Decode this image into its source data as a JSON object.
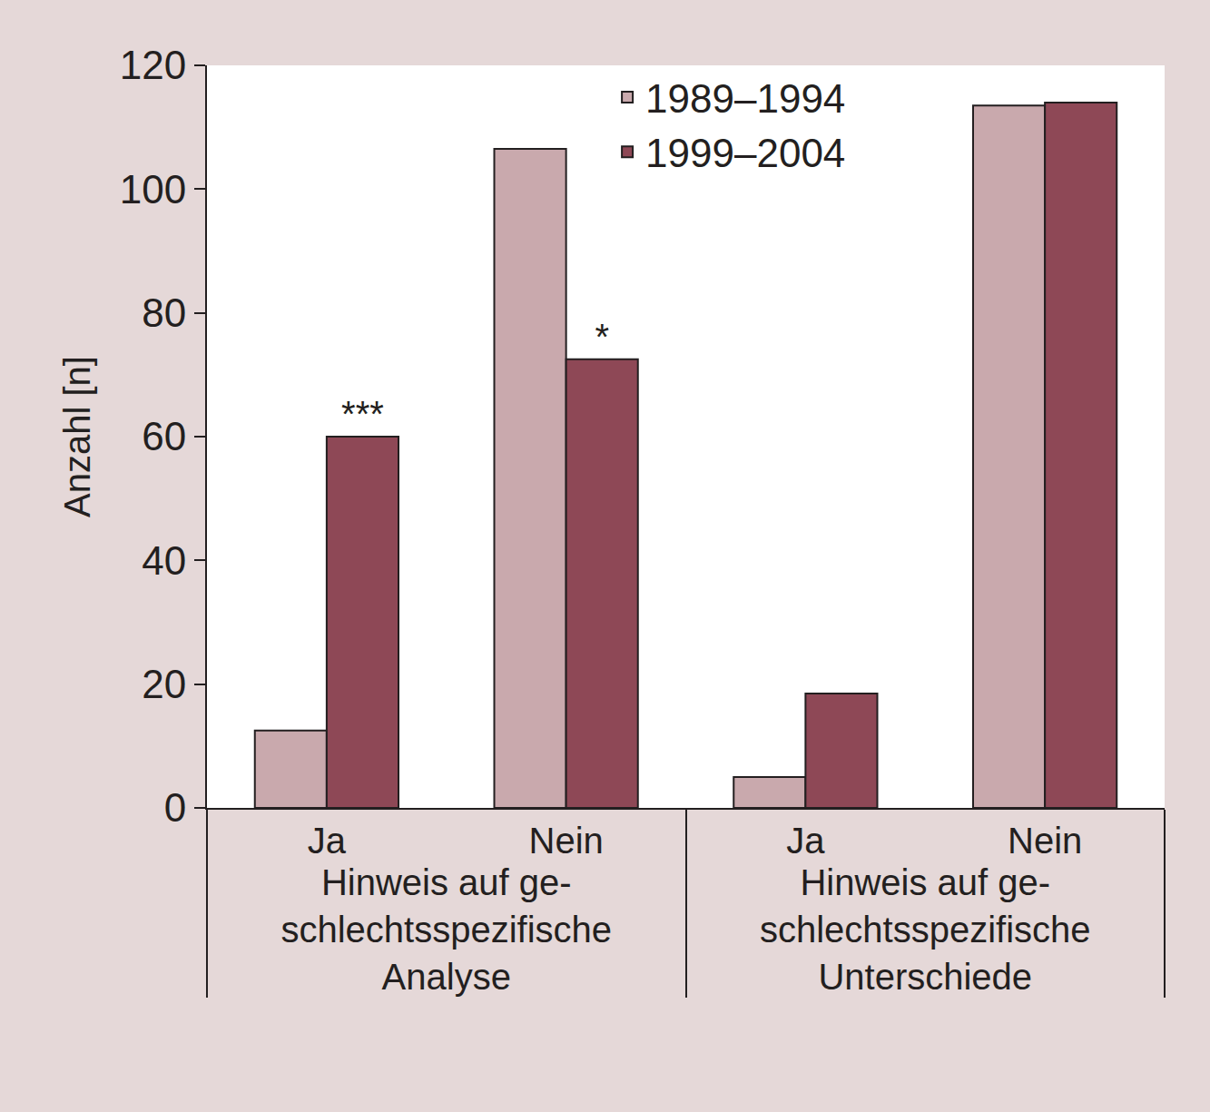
{
  "chart_data": {
    "type": "bar",
    "y_label": "Anzahl [n]",
    "categories": [
      "Ja",
      "Nein",
      "Ja",
      "Nein"
    ],
    "category_groups": [
      "Hinweis auf ge-\nschlechtsspezifische\nAnalyse",
      "Hinweis auf ge-\nschlechtsspezifische\nAnalyse",
      "Hinweis auf ge-\nschlechtsspezifische\nUnterschiede",
      "Hinweis auf ge-\nschlechtsspezifische\nUnterschiede"
    ],
    "series": [
      {
        "name": "1989–1994",
        "color": "#c9a9ad",
        "values": [
          12.5,
          106.5,
          5,
          113.5
        ]
      },
      {
        "name": "1999–2004",
        "color": "#8e4856",
        "values": [
          60,
          72.5,
          18.5,
          114
        ],
        "significance": [
          "***",
          "*",
          null,
          null
        ]
      }
    ],
    "ylim": [
      0,
      120
    ],
    "yticks": [
      0,
      20,
      40,
      60,
      80,
      100,
      120
    ],
    "grid": false,
    "legend": "top"
  }
}
